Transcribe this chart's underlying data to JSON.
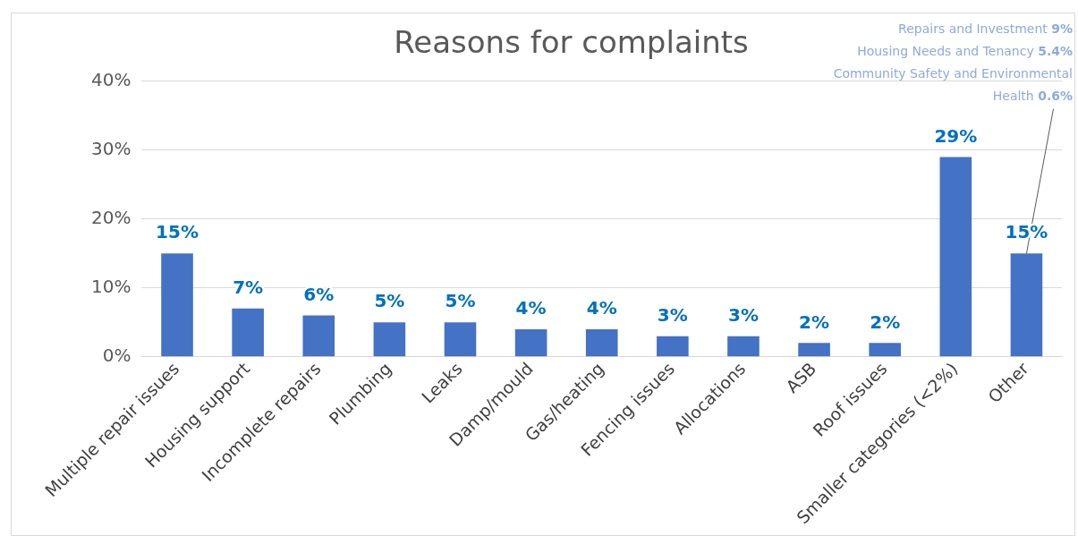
{
  "chart_data": {
    "type": "bar",
    "title": "Reasons for complaints",
    "categories": [
      "Multiple repair issues",
      "Housing support",
      "Incomplete repairs",
      "Plumbing",
      "Leaks",
      "Damp/mould",
      "Gas/heating",
      "Fencing issues",
      "Allocations",
      "ASB",
      "Roof issues",
      "Smaller categories (<2%)",
      "Other"
    ],
    "values": [
      15,
      7,
      6,
      5,
      5,
      4,
      4,
      3,
      3,
      2,
      2,
      29,
      15
    ],
    "value_labels": [
      "15%",
      "7%",
      "6%",
      "5%",
      "5%",
      "4%",
      "4%",
      "3%",
      "3%",
      "2%",
      "2%",
      "29%",
      "15%"
    ],
    "color": "#4472c4",
    "ylim": [
      0,
      40
    ],
    "yticks": [
      {
        "value": 0,
        "label": "0%"
      },
      {
        "value": 10,
        "label": "10%"
      },
      {
        "value": 20,
        "label": "20%"
      },
      {
        "value": 30,
        "label": "30%"
      },
      {
        "value": 40,
        "label": "40%"
      }
    ],
    "grid": "y",
    "annotations": [
      "Repairs and Investment 9%",
      "Housing Needs and Tenancy 5.4%",
      {
        "text": "Community Safety and Environmental Health 0.6%",
        "x": "Other",
        "y": 15
      }
    ]
  }
}
